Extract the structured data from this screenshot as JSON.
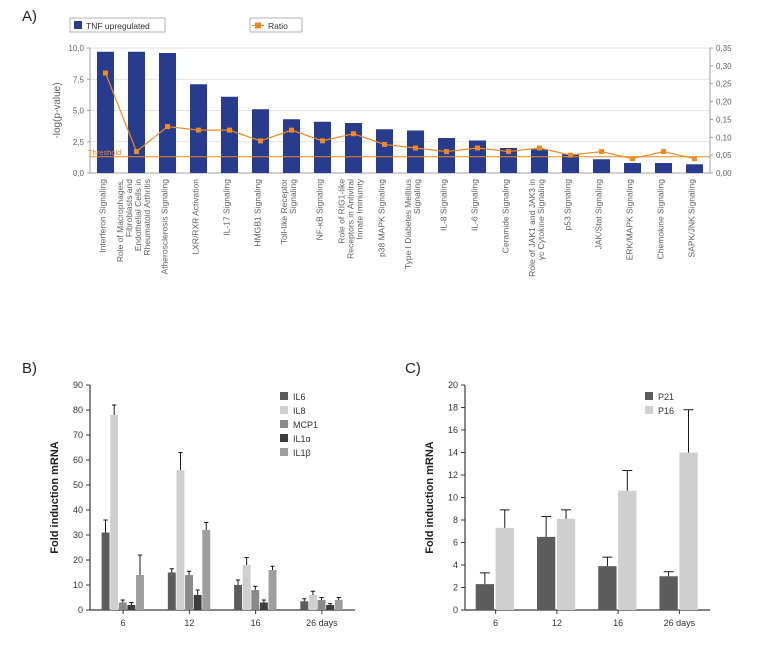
{
  "panelA": {
    "label": "A)",
    "legend_bar": "TNF upregulated",
    "legend_line": "Ratio",
    "threshold_label": "Threshold",
    "y_left_title": "-log(p-value)",
    "y_left": {
      "min": 0,
      "max": 10,
      "step": 2.5,
      "ticks": [
        "0,0",
        "2,5",
        "5,0",
        "7,5",
        "10,0"
      ]
    },
    "y_right": {
      "min": 0,
      "max": 0.35,
      "step": 0.05,
      "ticks": [
        "0,00",
        "0,05",
        "0,10",
        "0,15",
        "0,20",
        "0,25",
        "0,30",
        "0,35"
      ]
    },
    "threshold": 1.3,
    "bar_color": "#283b8d",
    "line_color": "#ed8a23",
    "grid_color": "#d9d9d9",
    "axis_color": "#a0a0a0",
    "label_color": "#606060",
    "label_fontsize": 8.5,
    "tick_fontsize": 8,
    "categories": [
      "Interferon Signaling",
      "Role of Macrophages, Fibroblasts and Endothelial Cells in Rheumatoid Arthritis",
      "Atherosclerosis Signaling",
      "LXR/RXR Activation",
      "IL-17 Signaling",
      "HMGB1 Signaling",
      "Toll-like Receptor Signaling",
      "NF-κB Signaling",
      "Role of RIG1-like Receptors in Antiviral Innate Immunity",
      "p38 MAPK Signaling",
      "Type I Diabetes Mellitus Signaling",
      "IL-8 Signaling",
      "IL-6 Signaling",
      "Ceramide Signaling",
      "Role of JAK1 and JAK3 in γc Cytokine Signaling",
      "p53 Signaling",
      "JAK/Stat Signaling",
      "ERK/MAPK Signaling",
      "Chemokine Signaling",
      "SAPK/JNK Signaling"
    ],
    "bar_values": [
      9.7,
      9.7,
      9.6,
      7.1,
      6.1,
      5.1,
      4.3,
      4.1,
      4.0,
      3.5,
      3.4,
      2.8,
      2.6,
      2.0,
      1.9,
      1.5,
      1.1,
      0.8,
      0.8,
      0.7
    ],
    "ratio_values": [
      0.28,
      0.06,
      0.13,
      0.12,
      0.12,
      0.09,
      0.12,
      0.09,
      0.11,
      0.08,
      0.07,
      0.06,
      0.07,
      0.06,
      0.07,
      0.05,
      0.06,
      0.04,
      0.06,
      0.04
    ]
  },
  "panelB": {
    "label": "B)",
    "y_title": "Fold induction mRNA",
    "y": {
      "min": 0,
      "max": 90,
      "step": 10
    },
    "x_labels": [
      "6",
      "12",
      "16",
      "26 days"
    ],
    "series_names": [
      "IL6",
      "IL8",
      "MCP1",
      "IL1α",
      "IL1β"
    ],
    "colors": [
      "#5c5c5c",
      "#cfcfcf",
      "#8a8a8a",
      "#3d3d3d",
      "#9e9e9e"
    ],
    "values": [
      [
        31,
        78,
        3,
        2,
        14
      ],
      [
        15,
        56,
        14,
        6,
        32
      ],
      [
        10,
        18,
        8,
        3,
        16
      ],
      [
        3.5,
        6,
        4,
        2,
        4
      ]
    ],
    "errors": [
      [
        5,
        4,
        1,
        1,
        8
      ],
      [
        1.5,
        7,
        1.5,
        2,
        3
      ],
      [
        2,
        3,
        1.5,
        1,
        1.5
      ],
      [
        1,
        1.5,
        1,
        0.5,
        1
      ]
    ],
    "axis_color": "#3a3a3a",
    "label_fontsize": 9,
    "tick_fontsize": 9
  },
  "panelC": {
    "label": "C)",
    "y_title": "Fold induction mRNA",
    "y": {
      "min": 0,
      "max": 20,
      "step": 2
    },
    "x_labels": [
      "6",
      "12",
      "16",
      "26 days"
    ],
    "series_names": [
      "P21",
      "P16"
    ],
    "colors": [
      "#5c5c5c",
      "#cfcfcf"
    ],
    "values": [
      [
        2.3,
        7.3
      ],
      [
        6.5,
        8.1
      ],
      [
        3.9,
        10.6
      ],
      [
        3.0,
        14.0
      ]
    ],
    "errors": [
      [
        1,
        1.6
      ],
      [
        1.8,
        0.8
      ],
      [
        0.8,
        1.8
      ],
      [
        0.4,
        3.8
      ]
    ],
    "axis_color": "#3a3a3a",
    "label_fontsize": 9,
    "tick_fontsize": 9
  }
}
